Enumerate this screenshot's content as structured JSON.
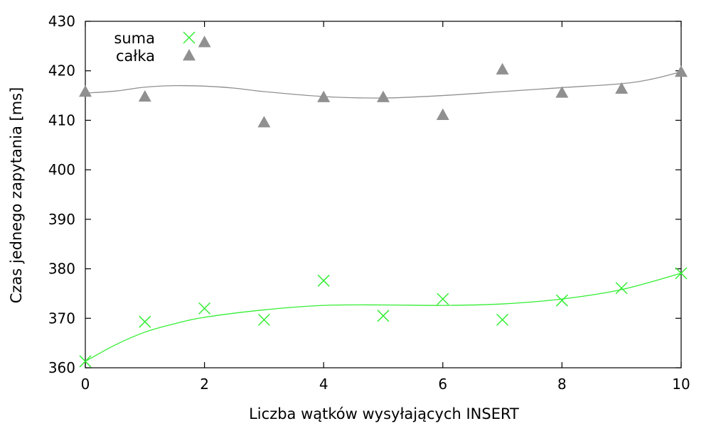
{
  "chart_data": {
    "type": "scatter",
    "xlabel": "Liczba wątków wysyłających INSERT",
    "ylabel": "Czas jednego zapytania [ms]",
    "xlim": [
      0,
      10
    ],
    "ylim": [
      360,
      430
    ],
    "x_ticks": [
      0,
      2,
      4,
      6,
      8,
      10
    ],
    "y_ticks": [
      360,
      370,
      380,
      390,
      400,
      410,
      420,
      430
    ],
    "grid": false,
    "legend_position": "top-left",
    "series": [
      {
        "name": "suma",
        "marker": "cross",
        "color": "#33ee33",
        "points": [
          [
            0,
            361.3
          ],
          [
            1,
            369.3
          ],
          [
            2,
            372.0
          ],
          [
            3,
            369.7
          ],
          [
            4,
            377.6
          ],
          [
            5,
            370.5
          ],
          [
            6,
            373.9
          ],
          [
            7,
            369.7
          ],
          [
            8,
            373.6
          ],
          [
            9,
            376.1
          ],
          [
            10,
            379.1
          ]
        ],
        "fit": [
          [
            0,
            361.3
          ],
          [
            0.5,
            364.6
          ],
          [
            1,
            367.2
          ],
          [
            1.5,
            368.9
          ],
          [
            2,
            370.2
          ],
          [
            3,
            371.7
          ],
          [
            4,
            372.6
          ],
          [
            5,
            372.7
          ],
          [
            6,
            372.6
          ],
          [
            7,
            372.9
          ],
          [
            8,
            373.9
          ],
          [
            9,
            375.8
          ],
          [
            10,
            379.1
          ]
        ]
      },
      {
        "name": "całka",
        "marker": "triangle",
        "color": "#909090",
        "points": [
          [
            0,
            415.8
          ],
          [
            1,
            414.8
          ],
          [
            2,
            425.8
          ],
          [
            3,
            409.6
          ],
          [
            4,
            414.7
          ],
          [
            5,
            414.7
          ],
          [
            6,
            411.1
          ],
          [
            7,
            420.3
          ],
          [
            8,
            415.6
          ],
          [
            9,
            416.4
          ],
          [
            10,
            419.8
          ]
        ],
        "fit": [
          [
            0,
            415.5
          ],
          [
            0.5,
            415.9
          ],
          [
            1,
            416.7
          ],
          [
            1.5,
            417.0
          ],
          [
            2,
            416.9
          ],
          [
            2.5,
            416.5
          ],
          [
            3,
            415.8
          ],
          [
            4,
            414.8
          ],
          [
            5,
            414.5
          ],
          [
            6,
            415.0
          ],
          [
            7,
            415.8
          ],
          [
            8,
            416.6
          ],
          [
            9,
            417.4
          ],
          [
            9.5,
            418.3
          ],
          [
            10,
            419.8
          ]
        ]
      }
    ]
  }
}
